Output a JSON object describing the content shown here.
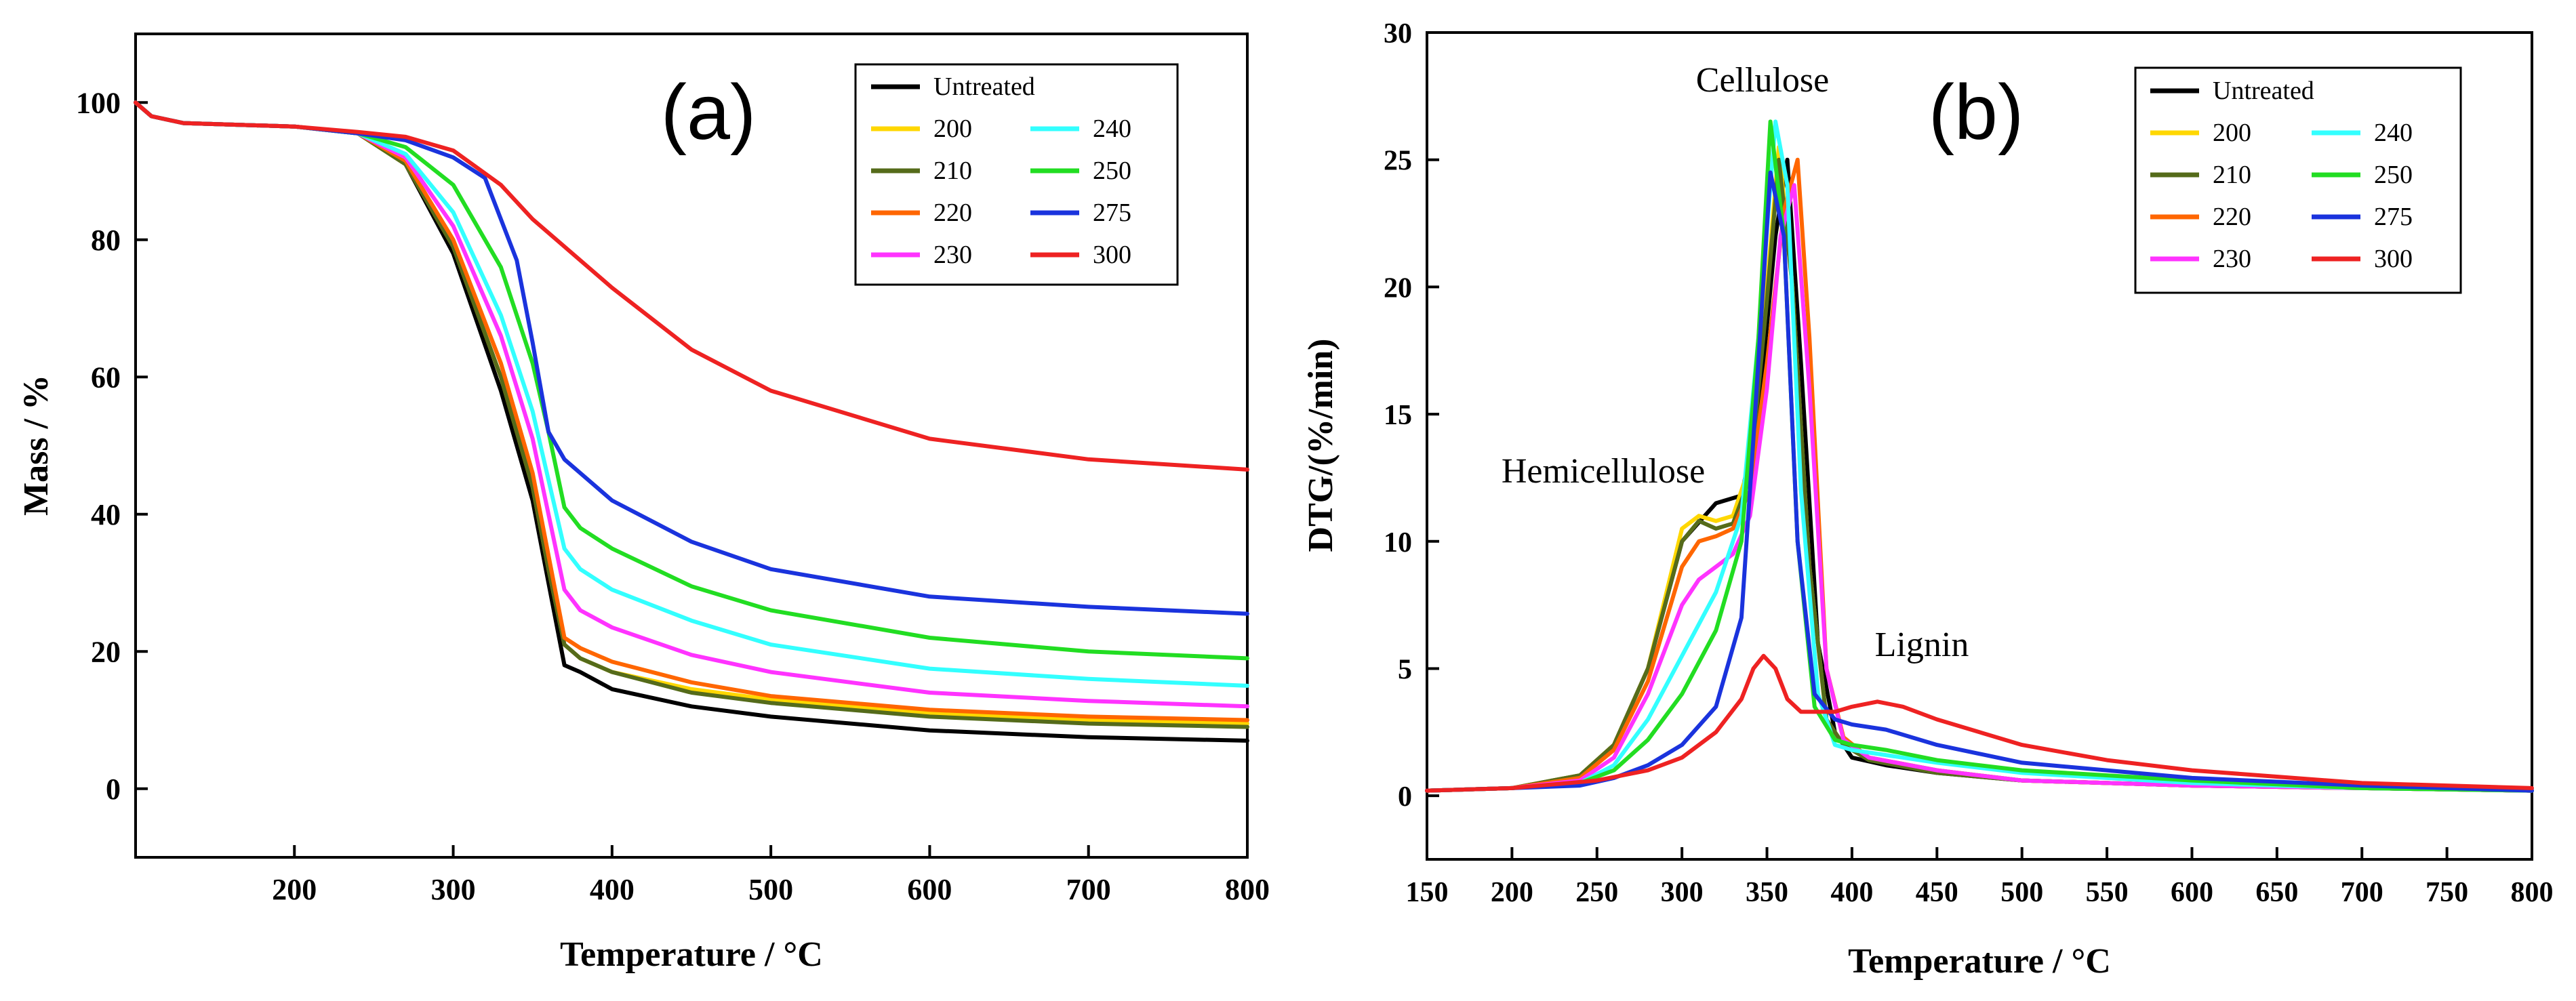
{
  "chart_data": [
    {
      "type": "line",
      "panel_label": "(a)",
      "title": "",
      "xlabel": "Temperature / °C",
      "ylabel": "Mass / %",
      "xlim": [
        100,
        800
      ],
      "ylim": [
        -10,
        110
      ],
      "xticks": [
        200,
        300,
        400,
        500,
        600,
        700,
        800
      ],
      "yticks": [
        0,
        20,
        40,
        60,
        80,
        100
      ],
      "grid": false,
      "legend_position": "top-right",
      "legend_columns": [
        [
          "Untreated",
          "200",
          "210",
          "220",
          "230"
        ],
        [
          "240",
          "250",
          "275",
          "300"
        ]
      ],
      "series": [
        {
          "name": "Untreated",
          "color": "#000000",
          "x": [
            100,
            110,
            130,
            200,
            240,
            270,
            300,
            330,
            350,
            360,
            370,
            380,
            400,
            450,
            500,
            600,
            700,
            800
          ],
          "y": [
            100,
            98,
            97,
            96.5,
            95.5,
            91,
            78,
            58,
            42,
            30,
            18,
            17,
            14.5,
            12,
            10.5,
            8.5,
            7.5,
            7
          ]
        },
        {
          "name": "200",
          "color": "#ffd700",
          "x": [
            100,
            110,
            130,
            200,
            240,
            270,
            300,
            330,
            350,
            360,
            370,
            380,
            400,
            450,
            500,
            600,
            700,
            800
          ],
          "y": [
            100,
            98,
            97,
            96.5,
            95.5,
            91,
            79,
            60,
            44,
            32,
            21,
            19,
            17,
            14.5,
            13,
            11,
            10,
            9.5
          ]
        },
        {
          "name": "210",
          "color": "#556b1a",
          "x": [
            100,
            110,
            130,
            200,
            240,
            270,
            300,
            330,
            350,
            360,
            370,
            380,
            400,
            450,
            500,
            600,
            700,
            800
          ],
          "y": [
            100,
            98,
            97,
            96.5,
            95.5,
            91,
            79,
            60,
            44,
            32,
            21,
            19,
            17,
            14,
            12.5,
            10.5,
            9.5,
            9
          ]
        },
        {
          "name": "220",
          "color": "#ff6600",
          "x": [
            100,
            110,
            130,
            200,
            240,
            270,
            300,
            330,
            350,
            360,
            370,
            380,
            400,
            450,
            500,
            600,
            700,
            800
          ],
          "y": [
            100,
            98,
            97,
            96.5,
            95.5,
            91.5,
            80,
            62,
            46,
            34,
            22,
            20.5,
            18.5,
            15.5,
            13.5,
            11.5,
            10.5,
            10
          ]
        },
        {
          "name": "230",
          "color": "#ff33ff",
          "x": [
            100,
            110,
            130,
            200,
            240,
            270,
            300,
            330,
            350,
            360,
            370,
            380,
            400,
            450,
            500,
            600,
            700,
            800
          ],
          "y": [
            100,
            98,
            97,
            96.5,
            95.5,
            92,
            82,
            66,
            51,
            40,
            29,
            26,
            23.5,
            19.5,
            17,
            14,
            12.8,
            12
          ]
        },
        {
          "name": "240",
          "color": "#33ffff",
          "x": [
            100,
            110,
            130,
            200,
            240,
            270,
            300,
            330,
            350,
            360,
            370,
            380,
            400,
            450,
            500,
            600,
            700,
            800
          ],
          "y": [
            100,
            98,
            97,
            96.5,
            95.5,
            92.5,
            84,
            69,
            55,
            45,
            35,
            32,
            29,
            24.5,
            21,
            17.5,
            16,
            15
          ]
        },
        {
          "name": "250",
          "color": "#22dd22",
          "x": [
            100,
            110,
            130,
            200,
            240,
            270,
            300,
            330,
            350,
            360,
            370,
            380,
            400,
            450,
            500,
            600,
            700,
            800
          ],
          "y": [
            100,
            98,
            97,
            96.5,
            95.5,
            93.5,
            88,
            76,
            62,
            52,
            41,
            38,
            35,
            29.5,
            26,
            22,
            20,
            19
          ]
        },
        {
          "name": "275",
          "color": "#1a33dd",
          "x": [
            100,
            110,
            130,
            200,
            240,
            270,
            300,
            320,
            340,
            350,
            360,
            370,
            380,
            400,
            450,
            500,
            600,
            700,
            800
          ],
          "y": [
            100,
            98,
            97,
            96.5,
            95.5,
            94.5,
            92,
            89,
            77,
            65,
            52,
            48,
            46,
            42,
            36,
            32,
            28,
            26.5,
            25.5
          ]
        },
        {
          "name": "300",
          "color": "#ee2222",
          "x": [
            100,
            110,
            130,
            200,
            240,
            270,
            300,
            330,
            350,
            370,
            400,
            450,
            500,
            600,
            700,
            800
          ],
          "y": [
            100,
            98,
            97,
            96.5,
            95.7,
            95,
            93,
            88,
            83,
            79,
            73,
            64,
            58,
            51,
            48,
            46.5
          ]
        }
      ]
    },
    {
      "type": "line",
      "panel_label": "(b)",
      "title": "",
      "xlabel": "Temperature / °C",
      "ylabel": "DTG/(%/min)",
      "xlim": [
        150,
        800
      ],
      "ylim": [
        -2.5,
        30
      ],
      "xticks": [
        150,
        200,
        250,
        300,
        350,
        400,
        450,
        500,
        550,
        600,
        650,
        700,
        750,
        800
      ],
      "yticks": [
        0,
        5,
        10,
        15,
        20,
        25,
        30
      ],
      "grid": false,
      "legend_position": "top-right",
      "legend_columns": [
        [
          "Untreated",
          "200",
          "210",
          "220",
          "230"
        ],
        [
          "240",
          "250",
          "275",
          "300"
        ]
      ],
      "annotations": [
        "Cellulose",
        "Hemicellulose",
        "Lignin"
      ],
      "series": [
        {
          "name": "Untreated",
          "color": "#000000",
          "x": [
            150,
            200,
            240,
            260,
            280,
            300,
            320,
            335,
            345,
            355,
            362,
            370,
            380,
            390,
            400,
            420,
            450,
            500,
            600,
            700,
            800
          ],
          "y": [
            0.2,
            0.3,
            0.8,
            2,
            5,
            10,
            11.5,
            11.8,
            15,
            22,
            25,
            17,
            6,
            2.5,
            1.5,
            1.2,
            0.9,
            0.6,
            0.4,
            0.3,
            0.2
          ]
        },
        {
          "name": "200",
          "color": "#ffd700",
          "x": [
            150,
            200,
            240,
            260,
            280,
            300,
            310,
            320,
            330,
            340,
            350,
            357,
            365,
            375,
            385,
            395,
            410,
            450,
            500,
            600,
            700,
            800
          ],
          "y": [
            0.2,
            0.3,
            0.8,
            2,
            5,
            10.5,
            11,
            10.8,
            11,
            13,
            20,
            25.5,
            20,
            9,
            3,
            2,
            1.5,
            1,
            0.6,
            0.4,
            0.3,
            0.2
          ]
        },
        {
          "name": "210",
          "color": "#556b1a",
          "x": [
            150,
            200,
            240,
            260,
            280,
            300,
            310,
            320,
            330,
            340,
            350,
            357,
            365,
            375,
            385,
            395,
            410,
            450,
            500,
            600,
            700,
            800
          ],
          "y": [
            0.2,
            0.3,
            0.8,
            2,
            5,
            10,
            10.8,
            10.5,
            10.7,
            12.5,
            19.5,
            25,
            20,
            9,
            3,
            2,
            1.4,
            0.9,
            0.6,
            0.4,
            0.3,
            0.2
          ]
        },
        {
          "name": "220",
          "color": "#ff6600",
          "x": [
            150,
            200,
            240,
            260,
            280,
            300,
            310,
            320,
            330,
            340,
            350,
            360,
            368,
            375,
            385,
            395,
            410,
            450,
            500,
            600,
            700,
            800
          ],
          "y": [
            0.2,
            0.3,
            0.7,
            1.8,
            4.5,
            9,
            10,
            10.2,
            10.5,
            12,
            17,
            23,
            25,
            18,
            5,
            2.3,
            1.5,
            1,
            0.6,
            0.4,
            0.3,
            0.2
          ]
        },
        {
          "name": "230",
          "color": "#ff33ff",
          "x": [
            150,
            200,
            240,
            260,
            280,
            300,
            310,
            320,
            330,
            340,
            350,
            358,
            366,
            375,
            385,
            395,
            410,
            450,
            500,
            600,
            700,
            800
          ],
          "y": [
            0.2,
            0.3,
            0.6,
            1.5,
            4,
            7.5,
            8.5,
            9,
            9.5,
            11,
            16,
            22,
            24,
            16,
            5,
            2.2,
            1.5,
            1,
            0.6,
            0.4,
            0.3,
            0.2
          ]
        },
        {
          "name": "240",
          "color": "#33ffff",
          "x": [
            150,
            200,
            240,
            260,
            280,
            300,
            320,
            335,
            345,
            355,
            362,
            370,
            380,
            390,
            400,
            420,
            450,
            500,
            600,
            700,
            800
          ],
          "y": [
            0.2,
            0.3,
            0.5,
            1.2,
            3,
            5.5,
            8,
            11,
            18,
            26.5,
            24,
            12,
            4,
            2,
            1.8,
            1.6,
            1.3,
            0.9,
            0.5,
            0.3,
            0.2
          ]
        },
        {
          "name": "250",
          "color": "#22dd22",
          "x": [
            150,
            200,
            240,
            260,
            280,
            300,
            320,
            335,
            345,
            352,
            360,
            368,
            378,
            390,
            400,
            420,
            450,
            500,
            600,
            700,
            800
          ],
          "y": [
            0.2,
            0.3,
            0.5,
            1,
            2.2,
            4,
            6.5,
            10,
            18,
            26.5,
            22,
            10,
            3.5,
            2.2,
            2,
            1.8,
            1.4,
            1,
            0.6,
            0.3,
            0.2
          ]
        },
        {
          "name": "275",
          "color": "#1a33dd",
          "x": [
            150,
            200,
            240,
            260,
            280,
            300,
            320,
            335,
            342,
            352,
            360,
            368,
            378,
            390,
            400,
            420,
            450,
            500,
            600,
            700,
            800
          ],
          "y": [
            0.2,
            0.3,
            0.4,
            0.7,
            1.2,
            2,
            3.5,
            7,
            14,
            24.5,
            22,
            10,
            4,
            3,
            2.8,
            2.6,
            2,
            1.3,
            0.7,
            0.4,
            0.2
          ]
        },
        {
          "name": "300",
          "color": "#ee2222",
          "x": [
            150,
            200,
            250,
            280,
            300,
            320,
            335,
            342,
            348,
            355,
            362,
            370,
            380,
            390,
            400,
            415,
            430,
            450,
            500,
            550,
            600,
            700,
            800
          ],
          "y": [
            0.2,
            0.3,
            0.6,
            1,
            1.5,
            2.5,
            3.8,
            5,
            5.5,
            5,
            3.8,
            3.3,
            3.3,
            3.3,
            3.5,
            3.7,
            3.5,
            3,
            2,
            1.4,
            1,
            0.5,
            0.3
          ]
        }
      ]
    }
  ]
}
